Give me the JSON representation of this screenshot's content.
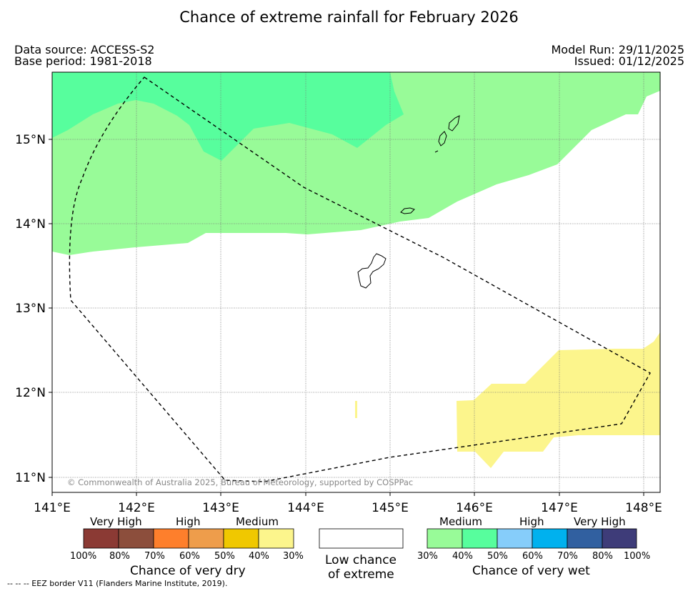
{
  "title": "Chance of extreme rainfall for February 2026",
  "header": {
    "data_source": "Data source: ACCESS-S2",
    "base_period": "Base period: 1981-2018",
    "model_run": "Model Run: 29/11/2025",
    "issued": "Issued: 01/12/2025"
  },
  "map": {
    "lon_ticks": [
      "141°E",
      "142°E",
      "143°E",
      "144°E",
      "145°E",
      "146°E",
      "147°E",
      "148°E"
    ],
    "lat_ticks": [
      "15°N",
      "14°N",
      "13°N",
      "12°N",
      "11°N"
    ],
    "copyright": "© Commonwealth of Australia 2025, Bureau of Meteorology, supported by COSPPac",
    "colors": {
      "wet_30_40": "#98fb98",
      "wet_40_50": "#57fe9d",
      "dry_30_40": "#fcf58c",
      "eez_line": "#000000",
      "land_outline": "#000000",
      "grid": "#777777"
    }
  },
  "legend": {
    "dry": {
      "title": "Chance of very dry",
      "levels": [
        "Very High",
        "High",
        "Medium"
      ],
      "ticks": [
        "100%",
        "80%",
        "70%",
        "60%",
        "50%",
        "40%",
        "30%"
      ],
      "colors": [
        "#8b3a34",
        "#8c4e3c",
        "#fe7f2c",
        "#ee9d4b",
        "#f0c800",
        "#fcf58c"
      ]
    },
    "low": {
      "line1": "Low chance",
      "line2": "of extreme"
    },
    "wet": {
      "title": "Chance of very wet",
      "levels": [
        "Medium",
        "High",
        "Very High"
      ],
      "ticks": [
        "30%",
        "40%",
        "50%",
        "60%",
        "70%",
        "80%",
        "100%"
      ],
      "colors": [
        "#98fb98",
        "#57fe9d",
        "#86cdfa",
        "#00b1ee",
        "#3160a0",
        "#3e3c79"
      ]
    }
  },
  "footnote": "--  --  -- EEZ border V11 (Flanders Marine Institute, 2019)."
}
